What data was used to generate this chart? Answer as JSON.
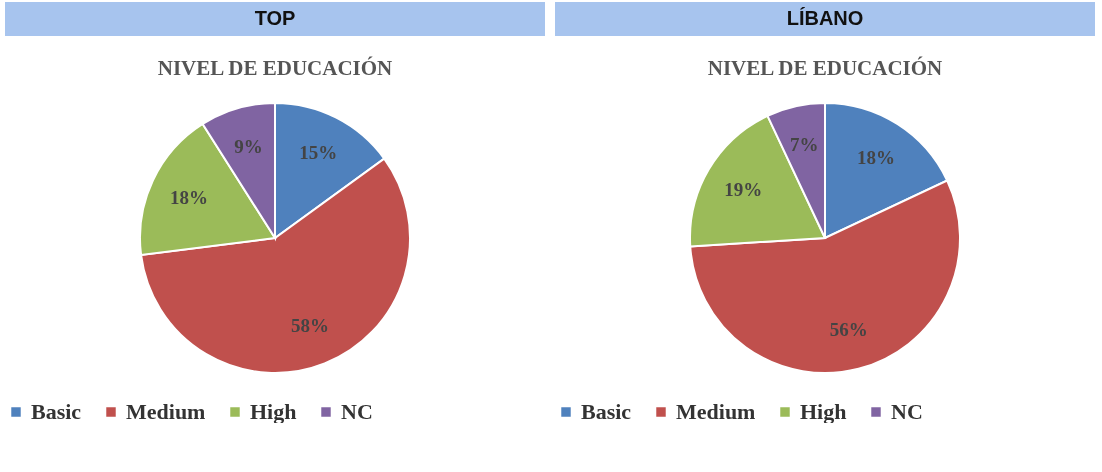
{
  "chart_data": [
    {
      "type": "pie",
      "title": "TOP",
      "subtitle": "NIVEL DE EDUCACIÓN",
      "categories": [
        "Basic",
        "Medium",
        "High",
        "NC"
      ],
      "values": [
        15,
        58,
        18,
        9
      ],
      "value_labels": [
        "15%",
        "58%",
        "18%",
        "9%"
      ],
      "colors": [
        "#4f81bd",
        "#c0504d",
        "#9bbb59",
        "#8064a2"
      ],
      "legend": "bottom"
    },
    {
      "type": "pie",
      "title": "LÍBANO",
      "subtitle": "NIVEL DE EDUCACIÓN",
      "categories": [
        "Basic",
        "Medium",
        "High",
        "NC"
      ],
      "values": [
        18,
        56,
        19,
        7
      ],
      "value_labels": [
        "18%",
        "56%",
        "19%",
        "7%"
      ],
      "colors": [
        "#4f81bd",
        "#c0504d",
        "#9bbb59",
        "#8064a2"
      ],
      "legend": "bottom"
    }
  ]
}
